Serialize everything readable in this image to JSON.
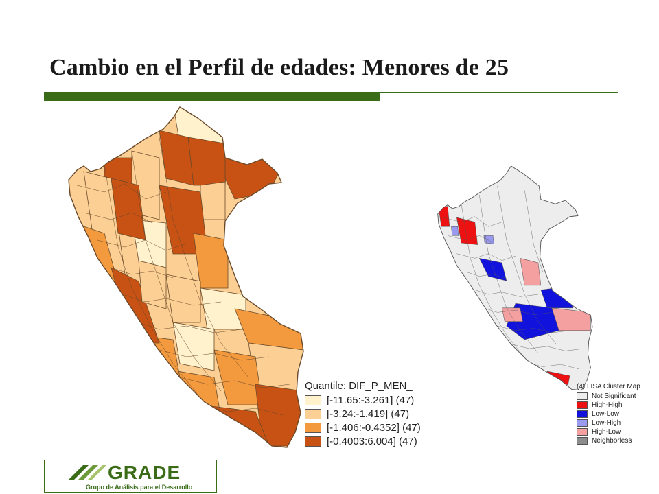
{
  "slide": {
    "title": "Cambio en el Perfil de edades: Menores de 25"
  },
  "theme": {
    "accent": "#3a6b16",
    "boundary": "#6b4a2a",
    "boundary_right": "#555555"
  },
  "left_map": {
    "legend_title": "Quantile: DIF_P_MEN_",
    "classes": [
      {
        "label": "[-11.65:-3.261] (47)",
        "color": "#fff2cc"
      },
      {
        "label": "[-3.24:-1.419] (47)",
        "color": "#fcd095"
      },
      {
        "label": "[-1.406:-0.4352] (47)",
        "color": "#f39a3e"
      },
      {
        "label": "[-0.4003:6.004] (47)",
        "color": "#c75214"
      }
    ]
  },
  "right_map": {
    "legend_title": "(4) LISA Cluster Map",
    "classes": [
      {
        "label": "Not Significant",
        "color": "#ededed"
      },
      {
        "label": "High-High",
        "color": "#ee1111"
      },
      {
        "label": "Low-Low",
        "color": "#1212dd"
      },
      {
        "label": "Low-High",
        "color": "#9a9af0"
      },
      {
        "label": "High-Low",
        "color": "#f4a0a0"
      },
      {
        "label": "Neighborless",
        "color": "#8c8c8c"
      }
    ]
  },
  "logo": {
    "name": "GRADE",
    "tagline": "Grupo de Análisis para el Desarrollo"
  }
}
